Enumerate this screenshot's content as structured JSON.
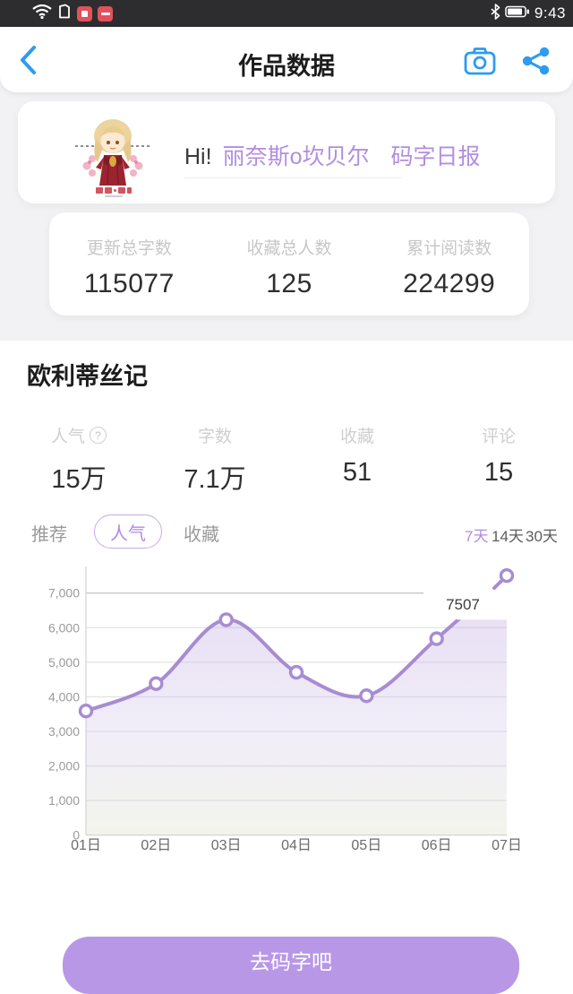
{
  "status_bar": {
    "time": "9:43",
    "icons": [
      "wifi",
      "clipboard",
      "screen-record",
      "do-not-disturb",
      "bluetooth",
      "battery"
    ]
  },
  "header": {
    "title": "作品数据"
  },
  "greeting": {
    "hi": "Hi!",
    "name": "丽奈斯o坎贝尔",
    "report_link": "码字日报"
  },
  "totals": {
    "items": [
      {
        "label": "更新总字数",
        "value": "115077"
      },
      {
        "label": "收藏总人数",
        "value": "125"
      },
      {
        "label": "累计阅读数",
        "value": "224299"
      }
    ]
  },
  "book": {
    "title": "欧利蒂丝记",
    "help_icon": "?",
    "stats": [
      {
        "label": "人气",
        "value": "15万"
      },
      {
        "label": "字数",
        "value": "7.1万"
      },
      {
        "label": "收藏",
        "value": "51"
      },
      {
        "label": "评论",
        "value": "15"
      }
    ]
  },
  "tabs": {
    "items": [
      {
        "label": "推荐",
        "active": false
      },
      {
        "label": "人气",
        "active": true
      },
      {
        "label": "收藏",
        "active": false
      }
    ]
  },
  "ranges": {
    "items": [
      {
        "label": "7天",
        "active": true
      },
      {
        "label": "14天",
        "active": false
      },
      {
        "label": "30天",
        "active": false
      }
    ]
  },
  "chart_data": {
    "type": "area",
    "title": "",
    "xlabel": "",
    "ylabel": "",
    "x_categories": [
      "01日",
      "02日",
      "03日",
      "04日",
      "05日",
      "06日",
      "07日"
    ],
    "values": [
      3590,
      4380,
      6230,
      4710,
      4030,
      5680,
      7507
    ],
    "yticks": [
      0,
      1000,
      2000,
      3000,
      4000,
      5000,
      6000,
      7000
    ],
    "ylim": [
      0,
      7600
    ],
    "annotation": "7507",
    "annotation_index": 6,
    "grid": "on",
    "legend": "none",
    "line_color": "#a78cd2",
    "marker_fill": "#ffffff",
    "fill_top_color": "rgba(178,146,219,0.34)",
    "fill_bottom_color": "rgba(214,222,196,0.32)",
    "clip_value": 6230
  },
  "footer": {
    "cta_label": "去码字吧"
  }
}
